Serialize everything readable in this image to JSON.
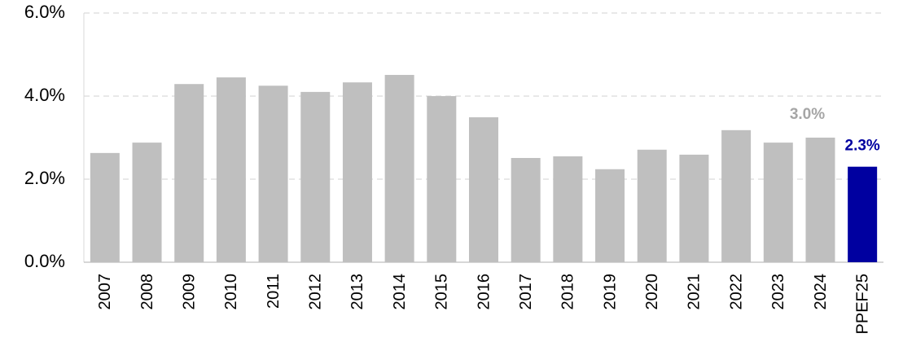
{
  "chart_data": {
    "type": "bar",
    "categories": [
      "2007",
      "2008",
      "2009",
      "2010",
      "2011",
      "2012",
      "2013",
      "2014",
      "2015",
      "2016",
      "2017",
      "2018",
      "2019",
      "2020",
      "2021",
      "2022",
      "2023",
      "2024",
      "PPEF25"
    ],
    "values": [
      2.63,
      2.88,
      4.29,
      4.45,
      4.25,
      4.1,
      4.33,
      4.51,
      4.0,
      3.49,
      2.51,
      2.55,
      2.24,
      2.71,
      2.59,
      3.18,
      2.88,
      3.0,
      2.3
    ],
    "value_labels": [
      null,
      null,
      null,
      null,
      null,
      null,
      null,
      null,
      null,
      null,
      null,
      null,
      null,
      null,
      null,
      null,
      null,
      "3.0%",
      "2.3%"
    ],
    "colors": [
      "#bfbfbf",
      "#bfbfbf",
      "#bfbfbf",
      "#bfbfbf",
      "#bfbfbf",
      "#bfbfbf",
      "#bfbfbf",
      "#bfbfbf",
      "#bfbfbf",
      "#bfbfbf",
      "#bfbfbf",
      "#bfbfbf",
      "#bfbfbf",
      "#bfbfbf",
      "#bfbfbf",
      "#bfbfbf",
      "#bfbfbf",
      "#bfbfbf",
      "#0000a0"
    ],
    "value_label_colors": [
      null,
      null,
      null,
      null,
      null,
      null,
      null,
      null,
      null,
      null,
      null,
      null,
      null,
      null,
      null,
      null,
      null,
      "#a6a6a6",
      "#0000a0"
    ],
    "ylim": [
      0,
      6
    ],
    "yticks": [
      {
        "value": 0,
        "label": "0.0%"
      },
      {
        "value": 2,
        "label": "2.0%"
      },
      {
        "value": 4,
        "label": "4.0%"
      },
      {
        "value": 6,
        "label": "6.0%"
      }
    ],
    "grid": true
  }
}
